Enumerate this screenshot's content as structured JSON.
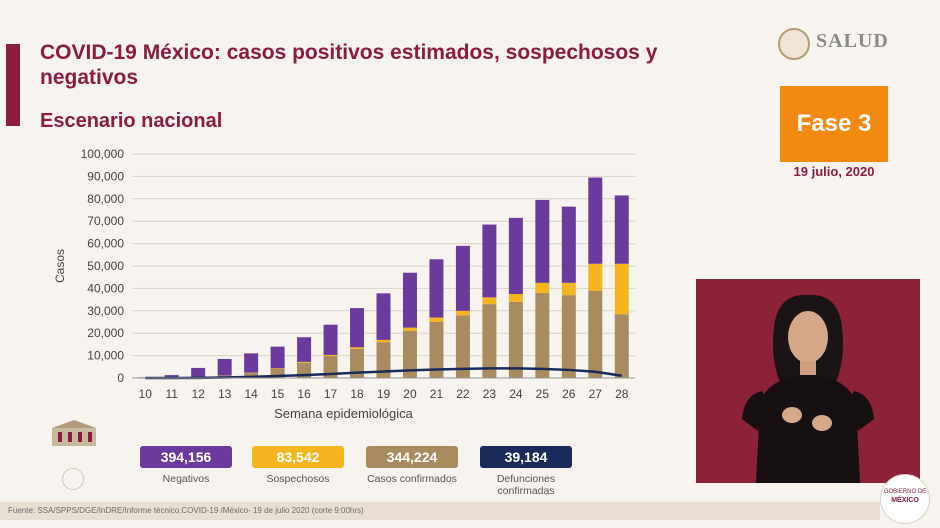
{
  "header": {
    "title": "COVID-19 México: casos positivos estimados, sospechosos y negativos",
    "subtitle": "Escenario nacional",
    "logo_text": "SALUD",
    "phase": "Fase 3",
    "date": "19 julio, 2020"
  },
  "colors": {
    "accent": "#8c1d3c",
    "negativos": "#6a3b9c",
    "sospechosos": "#f5b51e",
    "confirmados": "#a88b5e",
    "defunciones": "#1a2a5a",
    "phase": "#f28a12"
  },
  "stats": [
    {
      "value": "394,156",
      "label": "Negativos",
      "color": "#6a3b9c"
    },
    {
      "value": "83,542",
      "label": "Sospechosos",
      "color": "#f5b51e"
    },
    {
      "value": "344,224",
      "label": "Casos confirmados",
      "color": "#a88b5e"
    },
    {
      "value": "39,184",
      "label": "Defunciones confirmadas",
      "color": "#1a2a5a"
    }
  ],
  "footer": {
    "source": "Fuente: SSA/SPPS/DGE/InDRE/Informe técnico.COVID-19 /México- 19 de julio 2020 (corte 9:00hrs)"
  },
  "mx_logo": {
    "line1": "GOBIERNO DE",
    "line2": "MÉXICO"
  },
  "chart_data": {
    "type": "bar",
    "stacked": true,
    "xlabel": "Semana epidemiológica",
    "ylabel": "Casos",
    "ylim": [
      0,
      100000
    ],
    "yticks": [
      "0",
      "10,000",
      "20,000",
      "30,000",
      "40,000",
      "50,000",
      "60,000",
      "70,000",
      "80,000",
      "90,000",
      "100,000"
    ],
    "grid": true,
    "categories": [
      "10",
      "11",
      "12",
      "13",
      "14",
      "15",
      "16",
      "17",
      "18",
      "19",
      "20",
      "21",
      "22",
      "23",
      "24",
      "25",
      "26",
      "27",
      "28"
    ],
    "series": [
      {
        "name": "Casos confirmados",
        "color": "#a88b5e",
        "values": [
          0,
          50,
          300,
          1000,
          2200,
          4000,
          6800,
          9800,
          13000,
          16000,
          21000,
          25000,
          28000,
          33000,
          34000,
          38000,
          37000,
          39000,
          28500
        ]
      },
      {
        "name": "Sospechosos",
        "color": "#f5b51e",
        "values": [
          0,
          0,
          50,
          100,
          200,
          300,
          400,
          500,
          700,
          1000,
          1500,
          2000,
          2000,
          3000,
          3500,
          4500,
          5500,
          12000,
          22500
        ]
      },
      {
        "name": "Negativos",
        "color": "#6a3b9c",
        "values": [
          300,
          1250,
          4150,
          7400,
          8600,
          9700,
          11000,
          13500,
          17500,
          20800,
          24500,
          26000,
          29000,
          32500,
          34000,
          37000,
          34000,
          38500,
          30500
        ]
      },
      {
        "name": "Defunciones confirmadas",
        "color": "#1a2a5a",
        "type": "line",
        "values": [
          0,
          0,
          50,
          200,
          500,
          900,
          1300,
          1800,
          2400,
          2900,
          3400,
          3800,
          4100,
          4300,
          4300,
          4100,
          3600,
          2800,
          1000
        ]
      }
    ]
  }
}
